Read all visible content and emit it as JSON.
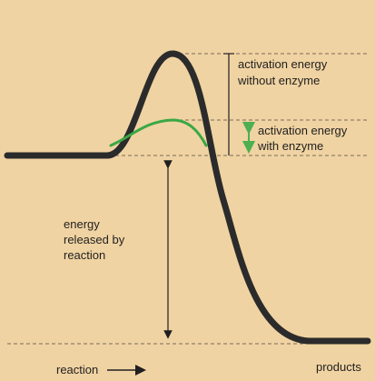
{
  "labels": {
    "activation_without": [
      "activation energy",
      "without enzyme"
    ],
    "activation_with": [
      "activation energy",
      "with enzyme"
    ],
    "energy_released": [
      "energy",
      "released by",
      "reaction"
    ],
    "reaction": "reaction",
    "products": "products"
  },
  "colors": {
    "background": "#f0d3a2",
    "curve_without_enzyme": "#2b2b2b",
    "curve_with_enzyme": "#39a845",
    "arrow_with_enzyme": "#4caf50",
    "arrow_dark": "#1f1f1f",
    "dashed_lines": "#7a6b5a"
  }
}
